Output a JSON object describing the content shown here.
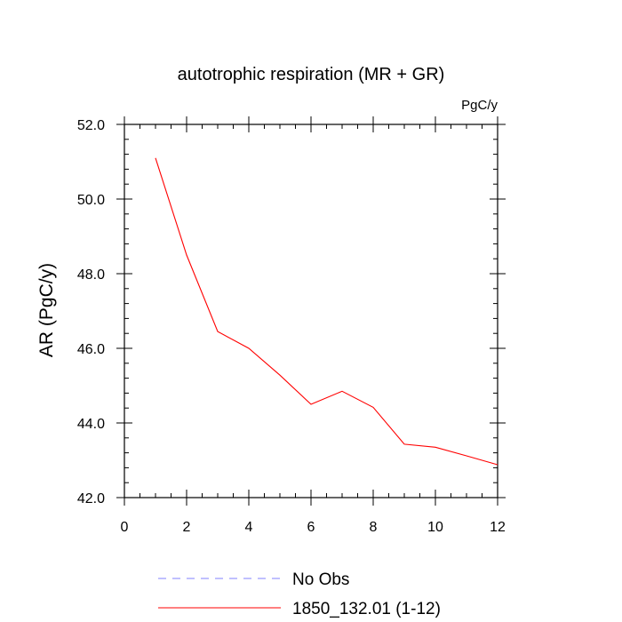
{
  "chart_data": {
    "type": "line",
    "title": "autotrophic respiration (MR + GR)",
    "units_label": "PgC/y",
    "ylabel": "AR  (PgC/y)",
    "xlabel": "",
    "xlim": [
      0,
      12
    ],
    "ylim": [
      42.0,
      52.0
    ],
    "x_ticks": [
      0,
      2,
      4,
      6,
      8,
      10,
      12
    ],
    "x_tick_labels": [
      "0",
      "2",
      "4",
      "6",
      "8",
      "10",
      "12"
    ],
    "y_ticks": [
      42.0,
      44.0,
      46.0,
      48.0,
      50.0,
      52.0
    ],
    "y_tick_labels": [
      "42.0",
      "44.0",
      "46.0",
      "48.0",
      "50.0",
      "52.0"
    ],
    "grid": false,
    "legend_position": "bottom",
    "series": [
      {
        "name": "No Obs",
        "color": "#8080ff",
        "style": "dashed",
        "x": [],
        "y": []
      },
      {
        "name": "1850_132.01 (1-12)",
        "color": "#ff0000",
        "style": "solid",
        "x": [
          1,
          2,
          3,
          4,
          5,
          6,
          7,
          8,
          9,
          10,
          11,
          12
        ],
        "y": [
          51.1,
          48.5,
          46.45,
          46.0,
          45.28,
          44.5,
          44.85,
          44.42,
          43.43,
          43.35,
          43.12,
          42.88
        ]
      }
    ]
  }
}
